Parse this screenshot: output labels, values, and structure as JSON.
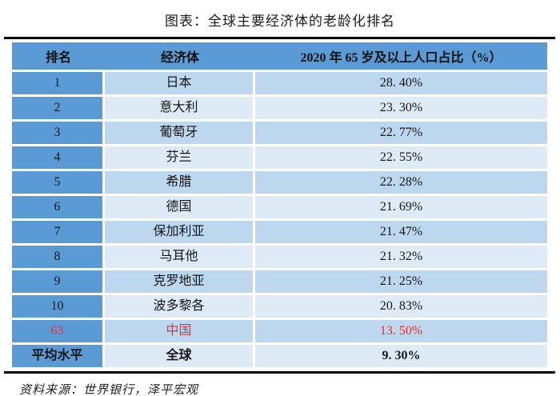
{
  "title": "图表：全球主要经济体的老龄化排名",
  "source": "资料来源：世界银行，泽平宏观",
  "colors": {
    "header_blue": "#5B9BD5",
    "rank_column_blue": "#5B9BD5",
    "row_shade_dark": "#BDD7EE",
    "row_shade_light": "#DEEBF7",
    "highlight_red": "#F72C2C",
    "rule_black": "#000000"
  },
  "table": {
    "headers": [
      "排名",
      "经济体",
      "2020 年 65 岁及以上人口占比（%）"
    ],
    "rows": [
      {
        "rank": "1",
        "economy": "日本",
        "value": "28. 40%"
      },
      {
        "rank": "2",
        "economy": "意大利",
        "value": "23. 30%"
      },
      {
        "rank": "3",
        "economy": "葡萄牙",
        "value": "22. 77%"
      },
      {
        "rank": "4",
        "economy": "芬兰",
        "value": "22. 55%"
      },
      {
        "rank": "5",
        "economy": "希腊",
        "value": "22. 28%"
      },
      {
        "rank": "6",
        "economy": "德国",
        "value": "21. 69%"
      },
      {
        "rank": "7",
        "economy": "保加利亚",
        "value": "21. 47%"
      },
      {
        "rank": "8",
        "economy": "马耳他",
        "value": "21. 32%"
      },
      {
        "rank": "9",
        "economy": "克罗地亚",
        "value": "21. 25%"
      },
      {
        "rank": "10",
        "economy": "波多黎各",
        "value": "20. 83%"
      },
      {
        "rank": "63",
        "economy": "中国",
        "value": "13. 50%"
      },
      {
        "rank": "平均水平",
        "economy": "全球",
        "value": "9. 30%"
      }
    ]
  },
  "chart_data": {
    "type": "table",
    "title": "图表：全球主要经济体的老龄化排名",
    "columns": [
      "排名",
      "经济体",
      "2020 年 65 岁及以上人口占比（%）"
    ],
    "unit": "%",
    "rows": [
      {
        "rank": 1,
        "economy": "日本",
        "share_65_plus_2020": 28.4
      },
      {
        "rank": 2,
        "economy": "意大利",
        "share_65_plus_2020": 23.3
      },
      {
        "rank": 3,
        "economy": "葡萄牙",
        "share_65_plus_2020": 22.77
      },
      {
        "rank": 4,
        "economy": "芬兰",
        "share_65_plus_2020": 22.55
      },
      {
        "rank": 5,
        "economy": "希腊",
        "share_65_plus_2020": 22.28
      },
      {
        "rank": 6,
        "economy": "德国",
        "share_65_plus_2020": 21.69
      },
      {
        "rank": 7,
        "economy": "保加利亚",
        "share_65_plus_2020": 21.47
      },
      {
        "rank": 8,
        "economy": "马耳他",
        "share_65_plus_2020": 21.32
      },
      {
        "rank": 9,
        "economy": "克罗地亚",
        "share_65_plus_2020": 21.25
      },
      {
        "rank": 10,
        "economy": "波多黎各",
        "share_65_plus_2020": 20.83
      },
      {
        "rank": 63,
        "economy": "中国",
        "share_65_plus_2020": 13.5,
        "highlighted": true
      },
      {
        "rank": "平均水平",
        "economy": "全球",
        "share_65_plus_2020": 9.3,
        "is_average": true
      }
    ],
    "source": "资料来源：世界银行，泽平宏观",
    "layout": {
      "highlight_color": "#F72C2C",
      "alternating_row_shading": true
    }
  }
}
